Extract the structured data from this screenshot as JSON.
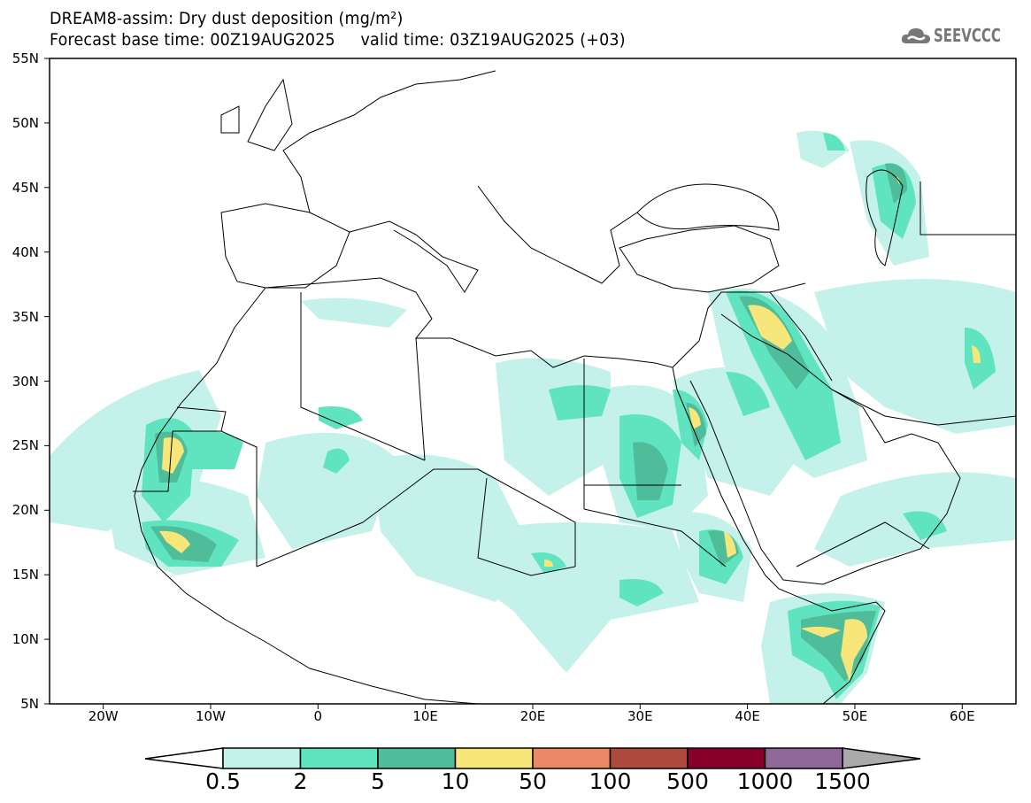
{
  "title": {
    "line1": "DREAM8-assim: Dry dust deposition (mg/m²)",
    "line2": "Forecast base time: 00Z19AUG2025     valid time: 03Z19AUG2025 (+03)"
  },
  "logo": {
    "text": "SEEVCCC",
    "icon": "cloud-icon"
  },
  "map": {
    "lat_labels": [
      "55N",
      "50N",
      "45N",
      "40N",
      "35N",
      "30N",
      "25N",
      "20N",
      "15N",
      "10N",
      "5N"
    ],
    "lon_labels": [
      "20W",
      "10W",
      "0",
      "10E",
      "20E",
      "30E",
      "40E",
      "50E",
      "60E"
    ]
  },
  "colorbar": {
    "labels": [
      "0.5",
      "2",
      "5",
      "10",
      "50",
      "100",
      "500",
      "1000",
      "1500"
    ],
    "colors": [
      "#c4f2ea",
      "#5fe4bf",
      "#50bd9a",
      "#f7e67a",
      "#eb8865",
      "#ad4a40",
      "#87002a",
      "#8d6898"
    ],
    "under_color": "#ffffff",
    "over_color": "#aaaaaa"
  }
}
